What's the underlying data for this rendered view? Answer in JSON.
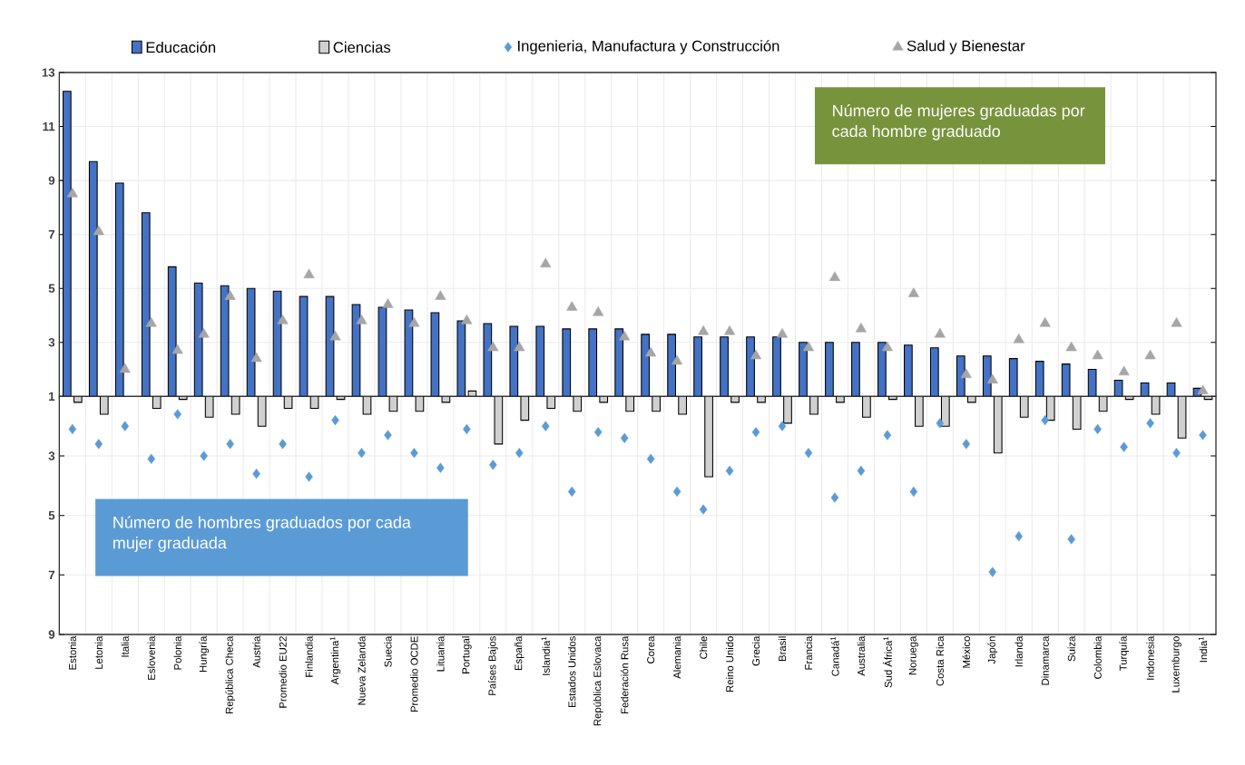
{
  "chart_data": [
    {
      "type": "bar",
      "categories": [
        null,
        null,
        null,
        null,
        null,
        null,
        null,
        null,
        null,
        null,
        null,
        null,
        null,
        null,
        null,
        null,
        null,
        null,
        null,
        null,
        null,
        null,
        null,
        null,
        null,
        null,
        null,
        null,
        null,
        null,
        null,
        null,
        null,
        null,
        null,
        null,
        null,
        null,
        null,
        null,
        null,
        null,
        null,
        null
      ],
      "series": [
        {
          "name": "Educación",
          "color": "#4472c4",
          "values": [
            12.3,
            9.7,
            8.9,
            7.8,
            5.8,
            5.2,
            5.1,
            5.0,
            4.9,
            4.7,
            4.7,
            4.4,
            4.3,
            4.2,
            4.1,
            3.8,
            3.7,
            3.6,
            3.6,
            3.5,
            3.5,
            3.5,
            3.3,
            3.3,
            3.2,
            3.2,
            3.2,
            3.2,
            3.0,
            3.0,
            3.0,
            3.0,
            2.9,
            2.8,
            2.5,
            2.5,
            2.4,
            2.3,
            2.2,
            2.0,
            1.6,
            1.5,
            1.5,
            1.3
          ]
        },
        {
          "name": "Ciencias",
          "color": "#d0d0d0",
          "values": [
            null,
            null,
            null,
            null,
            null,
            null,
            null,
            null,
            null,
            null,
            null,
            null,
            null,
            null,
            null,
            1.2,
            null,
            null,
            null,
            null,
            null,
            null,
            null,
            null,
            null,
            null,
            null,
            null,
            null,
            null,
            null,
            null,
            null,
            null,
            null,
            null,
            null,
            null,
            null,
            null,
            null,
            null,
            null,
            null
          ]
        },
        {
          "name": "Salud y Bienestar",
          "type": "scatter",
          "marker": "triangle",
          "color": "#a6a6a6",
          "values": [
            8.5,
            7.1,
            2.0,
            3.7,
            2.7,
            3.3,
            4.7,
            2.4,
            3.8,
            5.5,
            3.2,
            3.8,
            4.4,
            3.7,
            4.7,
            3.8,
            2.8,
            2.8,
            5.9,
            4.3,
            4.1,
            3.2,
            2.6,
            2.3,
            3.4,
            3.4,
            2.5,
            3.3,
            2.8,
            5.4,
            3.5,
            2.8,
            4.8,
            3.3,
            1.8,
            1.6,
            3.1,
            3.7,
            2.8,
            2.5,
            1.9,
            2.5,
            3.7,
            1.2
          ]
        }
      ],
      "ylim": [
        1,
        13
      ],
      "yticks": [
        1,
        3,
        5,
        7,
        9,
        11,
        13
      ],
      "tick_labels": "y",
      "grid": true,
      "legend": "top",
      "annotations": [
        "Número de mujeres graduadas por cada hombre graduado"
      ]
    },
    {
      "type": "bar",
      "categories": [
        "Estonia",
        "Letonia",
        "Italia",
        "Eslovenia",
        "Polonia",
        "Hungría",
        "República Checa",
        "Austria",
        "Promedio EU22",
        "Finlandia",
        "Argentina$^{1}$",
        "Nueva Zelanda",
        "Suecia",
        "Promedio OCDE",
        "Lituania",
        "Portugal",
        "Países Bajos",
        "España",
        "Islandia$^{1}$",
        "Estados Unidos",
        "República Eslovaca",
        "Federación Rusa",
        "Corea",
        "Alemania",
        "Chile",
        "Reino Unido",
        "Grecia",
        "Brasil",
        "Francia",
        "Canadá$^{1}$",
        "Australia",
        "Sud África$^{1}$",
        "Noruega",
        "Costa Rica",
        "México",
        "Japón",
        "Irlanda",
        "Dinamarca",
        "Suiza",
        "Colombia",
        "Turquía",
        "Indonesia",
        "Luxemburgo",
        "India$^{1}$"
      ],
      "series": [
        {
          "color": "#d0d0d0",
          "values": [
            1.2,
            1.6,
            null,
            1.4,
            1.1,
            1.7,
            1.6,
            2.0,
            1.4,
            1.4,
            1.1,
            1.6,
            1.5,
            1.5,
            1.2,
            null,
            2.6,
            1.8,
            1.4,
            1.5,
            1.2,
            1.5,
            1.5,
            1.6,
            3.7,
            1.2,
            1.2,
            1.9,
            1.6,
            1.2,
            1.7,
            1.1,
            2.0,
            2.0,
            1.2,
            2.9,
            1.7,
            1.8,
            2.1,
            1.5,
            1.1,
            1.6,
            2.4,
            1.1
          ]
        },
        {
          "name": "Ingenieria, Manufactura y Construcción",
          "type": "scatter",
          "marker": "diamond",
          "color": "#5b9bd5",
          "values": [
            2.1,
            2.6,
            2.0,
            3.1,
            1.6,
            3.0,
            2.6,
            3.6,
            2.6,
            3.7,
            1.8,
            2.9,
            2.3,
            2.9,
            3.4,
            2.1,
            3.3,
            2.9,
            2.0,
            4.2,
            2.2,
            2.4,
            3.1,
            4.2,
            4.8,
            3.5,
            2.2,
            2.0,
            2.9,
            4.4,
            3.5,
            2.3,
            4.2,
            1.9,
            2.6,
            6.9,
            5.7,
            1.8,
            5.8,
            2.1,
            2.7,
            1.9,
            2.9,
            2.3
          ]
        }
      ],
      "ylim": [
        9,
        1
      ],
      "yticks": [
        3,
        5,
        7,
        9
      ],
      "grid": true,
      "legend": "top",
      "annotations": [
        "Número de hombres graduados por cada mujer graduada"
      ]
    }
  ]
}
